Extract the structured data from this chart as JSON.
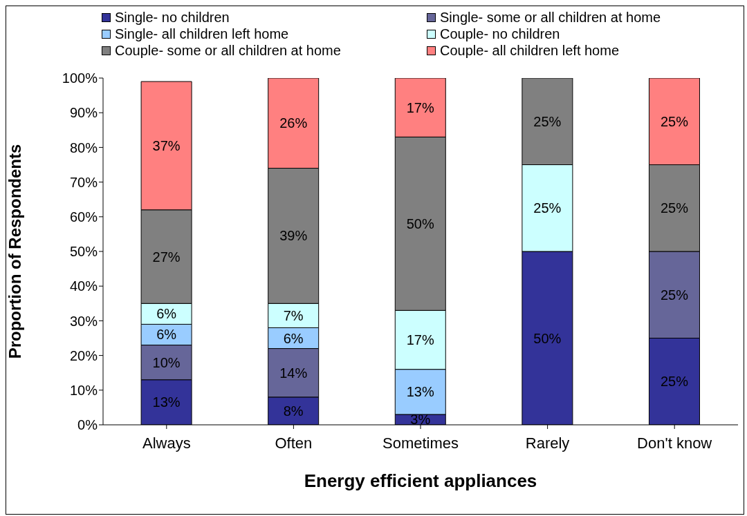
{
  "chart_data": {
    "type": "bar",
    "stacked": true,
    "xlabel": "Energy efficient appliances",
    "ylabel": "Proportion of Respondents",
    "categories": [
      "Always",
      "Often",
      "Sometimes",
      "Rarely",
      "Don't know"
    ],
    "ylim": [
      0,
      100
    ],
    "yticks": [
      {
        "value": 0,
        "label": "0%"
      },
      {
        "value": 10,
        "label": "10%"
      },
      {
        "value": 20,
        "label": "20%"
      },
      {
        "value": 30,
        "label": "30%"
      },
      {
        "value": 40,
        "label": "40%"
      },
      {
        "value": 50,
        "label": "50%"
      },
      {
        "value": 60,
        "label": "60%"
      },
      {
        "value": 70,
        "label": "70%"
      },
      {
        "value": 80,
        "label": "80%"
      },
      {
        "value": 90,
        "label": "90%"
      },
      {
        "value": 100,
        "label": "100%"
      }
    ],
    "grid": false,
    "legend": "top",
    "series": [
      {
        "name": "Single- no children",
        "color": "#333399",
        "values": [
          13,
          8,
          3,
          50,
          25
        ],
        "value_labels": [
          "13%",
          "8%",
          "3%",
          "50%",
          "25%"
        ]
      },
      {
        "name": "Single- some or all children at home",
        "color": "#666699",
        "values": [
          10,
          14,
          null,
          null,
          25
        ],
        "value_labels": [
          "10%",
          "14%",
          null,
          null,
          "25%"
        ]
      },
      {
        "name": "Single- all children left home",
        "color": "#99ccff",
        "values": [
          6,
          6,
          13,
          null,
          null
        ],
        "value_labels": [
          "6%",
          "6%",
          "13%",
          null,
          null
        ]
      },
      {
        "name": "Couple- no children",
        "color": "#ccffff",
        "values": [
          6,
          7,
          17,
          25,
          null
        ],
        "value_labels": [
          "6%",
          "7%",
          "17%",
          "25%",
          null
        ]
      },
      {
        "name": "Couple- some or all children at home",
        "color": "#808080",
        "values": [
          27,
          39,
          50,
          25,
          25
        ],
        "value_labels": [
          "27%",
          "39%",
          "50%",
          "25%",
          "25%"
        ]
      },
      {
        "name": "Couple- all children left home",
        "color": "#ff8080",
        "values": [
          37,
          26,
          17,
          null,
          25
        ],
        "value_labels": [
          "37%",
          "26%",
          "17%",
          null,
          "25%"
        ]
      }
    ]
  }
}
